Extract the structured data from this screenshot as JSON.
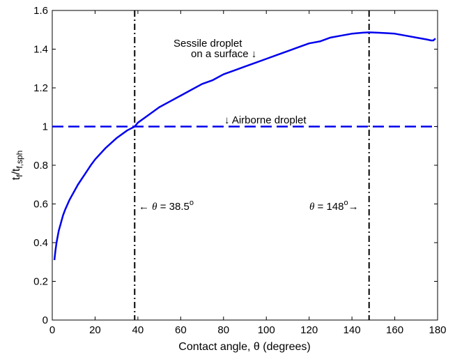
{
  "chart_data": {
    "type": "line",
    "xlabel": "Contact angle, θ (degrees)",
    "ylabel": "t",
    "ylabel_sub1": "f",
    "ylabel_mid": "/t",
    "ylabel_sub2": "f,sph",
    "xlim": [
      0,
      180
    ],
    "ylim": [
      0,
      1.6
    ],
    "xticks": [
      "0",
      "20",
      "40",
      "60",
      "80",
      "100",
      "120",
      "140",
      "160",
      "180"
    ],
    "yticks": [
      "0",
      "0.2",
      "0.4",
      "0.6",
      "0.8",
      "1",
      "1.2",
      "1.4",
      "1.6"
    ],
    "grid": false,
    "series": [
      {
        "color": "#0000ee",
        "style": "solid",
        "x": [
          1,
          1.5,
          2,
          3,
          4,
          5,
          6,
          8,
          10,
          12,
          15,
          18,
          20,
          25,
          30,
          35,
          38.5,
          40,
          45,
          50,
          55,
          60,
          65,
          70,
          75,
          80,
          85,
          90,
          95,
          100,
          105,
          110,
          115,
          120,
          125,
          130,
          135,
          140,
          145,
          148,
          152,
          156,
          160,
          165,
          170,
          175,
          177,
          178,
          179
        ],
        "y": [
          0.31,
          0.36,
          0.4,
          0.46,
          0.5,
          0.54,
          0.57,
          0.62,
          0.66,
          0.7,
          0.75,
          0.8,
          0.83,
          0.89,
          0.94,
          0.98,
          1.0,
          1.02,
          1.06,
          1.1,
          1.13,
          1.16,
          1.19,
          1.22,
          1.24,
          1.27,
          1.29,
          1.31,
          1.33,
          1.35,
          1.37,
          1.39,
          1.41,
          1.43,
          1.44,
          1.46,
          1.47,
          1.48,
          1.485,
          1.487,
          1.485,
          1.483,
          1.48,
          1.47,
          1.46,
          1.45,
          1.445,
          1.445,
          1.455
        ]
      },
      {
        "color": "#0000ee",
        "style": "dashed",
        "x": [
          0,
          180
        ],
        "y": [
          1,
          1
        ]
      }
    ],
    "vlines": [
      {
        "x": 38.5,
        "color": "#000000",
        "style": "dashdot"
      },
      {
        "x": 148,
        "color": "#000000",
        "style": "dashdot"
      }
    ],
    "annotations": {
      "sessile_line1": "Sessile droplet",
      "sessile_line2": "on a surface ↓",
      "airborne": "↓ Airborne droplet",
      "left_prefix": "← ",
      "left_theta": "θ",
      "left_mid": " = 38.5",
      "left_sup": "o",
      "right_theta": "θ",
      "right_mid": " = 148",
      "right_sup": "o",
      "right_suffix": "→"
    }
  }
}
